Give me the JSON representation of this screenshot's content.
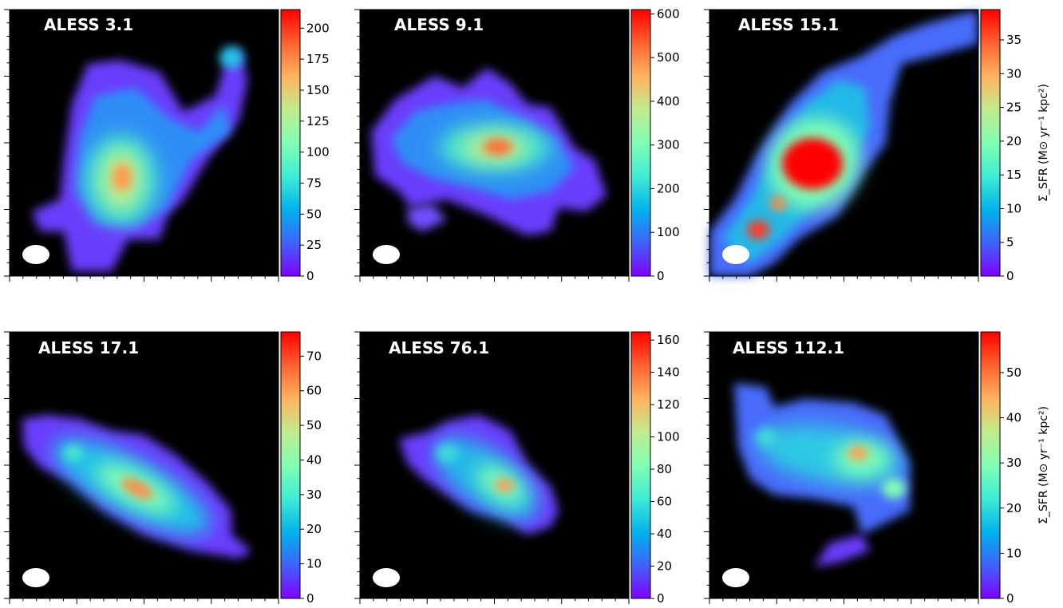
{
  "chart_data": [
    {
      "type": "heatmap",
      "title": "ALESS 3.1",
      "colorbar": {
        "min": 0,
        "max": 215,
        "ticks": [
          0,
          25,
          50,
          75,
          100,
          125,
          150,
          175,
          200
        ]
      },
      "colorbar_label": ""
    },
    {
      "type": "heatmap",
      "title": "ALESS 9.1",
      "colorbar": {
        "min": 0,
        "max": 610,
        "ticks": [
          0,
          100,
          200,
          300,
          400,
          500,
          600
        ]
      },
      "colorbar_label": ""
    },
    {
      "type": "heatmap",
      "title": "ALESS 15.1",
      "colorbar": {
        "min": 0,
        "max": 39.5,
        "ticks": [
          0,
          5,
          10,
          15,
          20,
          25,
          30,
          35
        ]
      },
      "colorbar_label": "Σ_SFR (M⊙ yr⁻¹ kpc²)"
    },
    {
      "type": "heatmap",
      "title": "ALESS 17.1",
      "colorbar": {
        "min": 0,
        "max": 77,
        "ticks": [
          0,
          10,
          20,
          30,
          40,
          50,
          60,
          70
        ]
      },
      "colorbar_label": ""
    },
    {
      "type": "heatmap",
      "title": "ALESS 76.1",
      "colorbar": {
        "min": 0,
        "max": 165,
        "ticks": [
          0,
          20,
          40,
          60,
          80,
          100,
          120,
          140,
          160
        ]
      },
      "colorbar_label": ""
    },
    {
      "type": "heatmap",
      "title": "ALESS 112.1",
      "colorbar": {
        "min": 0,
        "max": 59,
        "ticks": [
          0,
          10,
          20,
          30,
          40,
          50
        ]
      },
      "colorbar_label": "Σ_SFR (M⊙ yr⁻¹ kpc²)"
    }
  ],
  "colormap": [
    "#8000ff",
    "#4062fa",
    "#01b3eb",
    "#40ecd4",
    "#81feb4",
    "#c1eb8e",
    "#ffb360",
    "#ff6230",
    "#ff0000"
  ]
}
